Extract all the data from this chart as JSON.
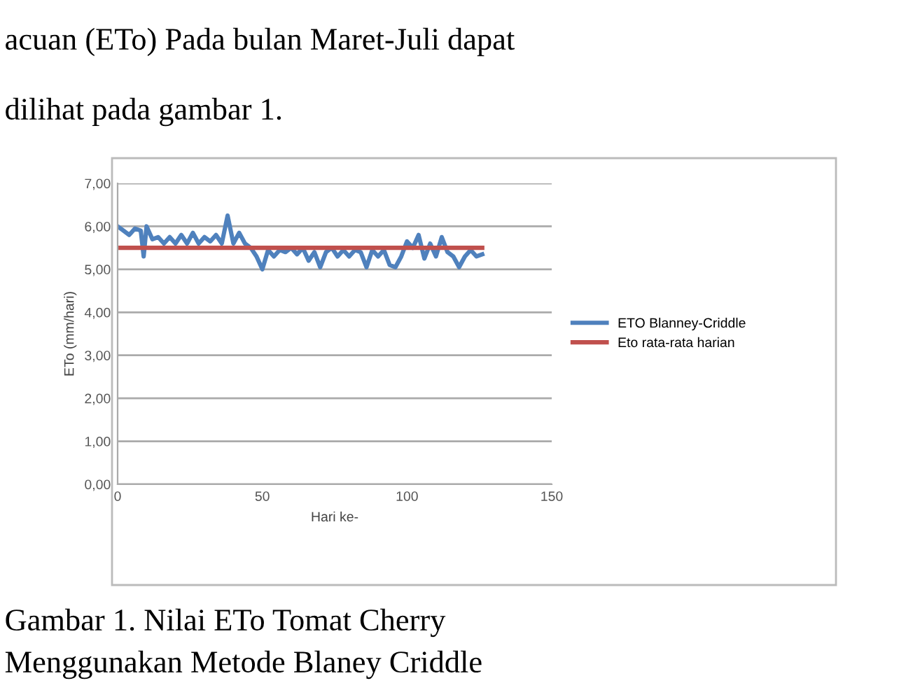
{
  "chart_data": {
    "type": "line",
    "xlabel": "Hari ke-",
    "ylabel": "ETo (mm/hari)",
    "annotations": [
      "acuan (ETo) Pada bulan Maret-Juli dapat",
      "dilihat pada gambar 1.",
      "Gambar 1. Nilai ETo Tomat Cherry",
      "Menggunakan Metode Blaney Criddle"
    ],
    "series": [
      {
        "name": "ETO Blanney-Criddle",
        "color": "#4f81bd",
        "x": [
          0,
          2,
          4,
          6,
          8,
          9,
          10,
          12,
          14,
          16,
          18,
          20,
          22,
          24,
          26,
          28,
          30,
          32,
          34,
          36,
          38,
          40,
          42,
          44,
          46,
          48,
          50,
          52,
          54,
          56,
          58,
          60,
          62,
          64,
          66,
          68,
          70,
          72,
          74,
          76,
          78,
          80,
          82,
          84,
          86,
          88,
          90,
          92,
          94,
          96,
          98,
          100,
          102,
          104,
          106,
          108,
          110,
          112,
          114,
          116,
          118,
          120,
          122,
          124,
          126
        ],
        "values": [
          6.0,
          5.9,
          5.8,
          5.95,
          5.9,
          5.3,
          6.0,
          5.7,
          5.75,
          5.6,
          5.75,
          5.6,
          5.8,
          5.6,
          5.85,
          5.6,
          5.75,
          5.65,
          5.8,
          5.6,
          6.25,
          5.6,
          5.85,
          5.6,
          5.5,
          5.3,
          5.0,
          5.45,
          5.3,
          5.45,
          5.4,
          5.5,
          5.35,
          5.5,
          5.2,
          5.4,
          5.05,
          5.4,
          5.5,
          5.3,
          5.45,
          5.3,
          5.45,
          5.4,
          5.05,
          5.45,
          5.3,
          5.45,
          5.1,
          5.05,
          5.3,
          5.65,
          5.5,
          5.8,
          5.25,
          5.6,
          5.3,
          5.75,
          5.4,
          5.3,
          5.05,
          5.3,
          5.45,
          5.3,
          5.35
        ]
      },
      {
        "name": "Eto rata-rata harian",
        "color": "#c0504d",
        "x": [
          0,
          126
        ],
        "values": [
          5.5,
          5.5
        ]
      }
    ],
    "xlim": [
      0,
      150
    ],
    "xticks": [
      0,
      50,
      100,
      150
    ],
    "ylim": [
      0,
      7
    ],
    "yticks": [
      {
        "value": 0,
        "label": "0,00"
      },
      {
        "value": 1,
        "label": "1,00"
      },
      {
        "value": 2,
        "label": "2,00"
      },
      {
        "value": 3,
        "label": "3,00"
      },
      {
        "value": 4,
        "label": "4,00"
      },
      {
        "value": 5,
        "label": "5,00"
      },
      {
        "value": 6,
        "label": "6,00"
      },
      {
        "value": 7,
        "label": "7,00"
      }
    ],
    "grid": "y",
    "legend": "right",
    "marker": "none",
    "line_style": "solid"
  }
}
